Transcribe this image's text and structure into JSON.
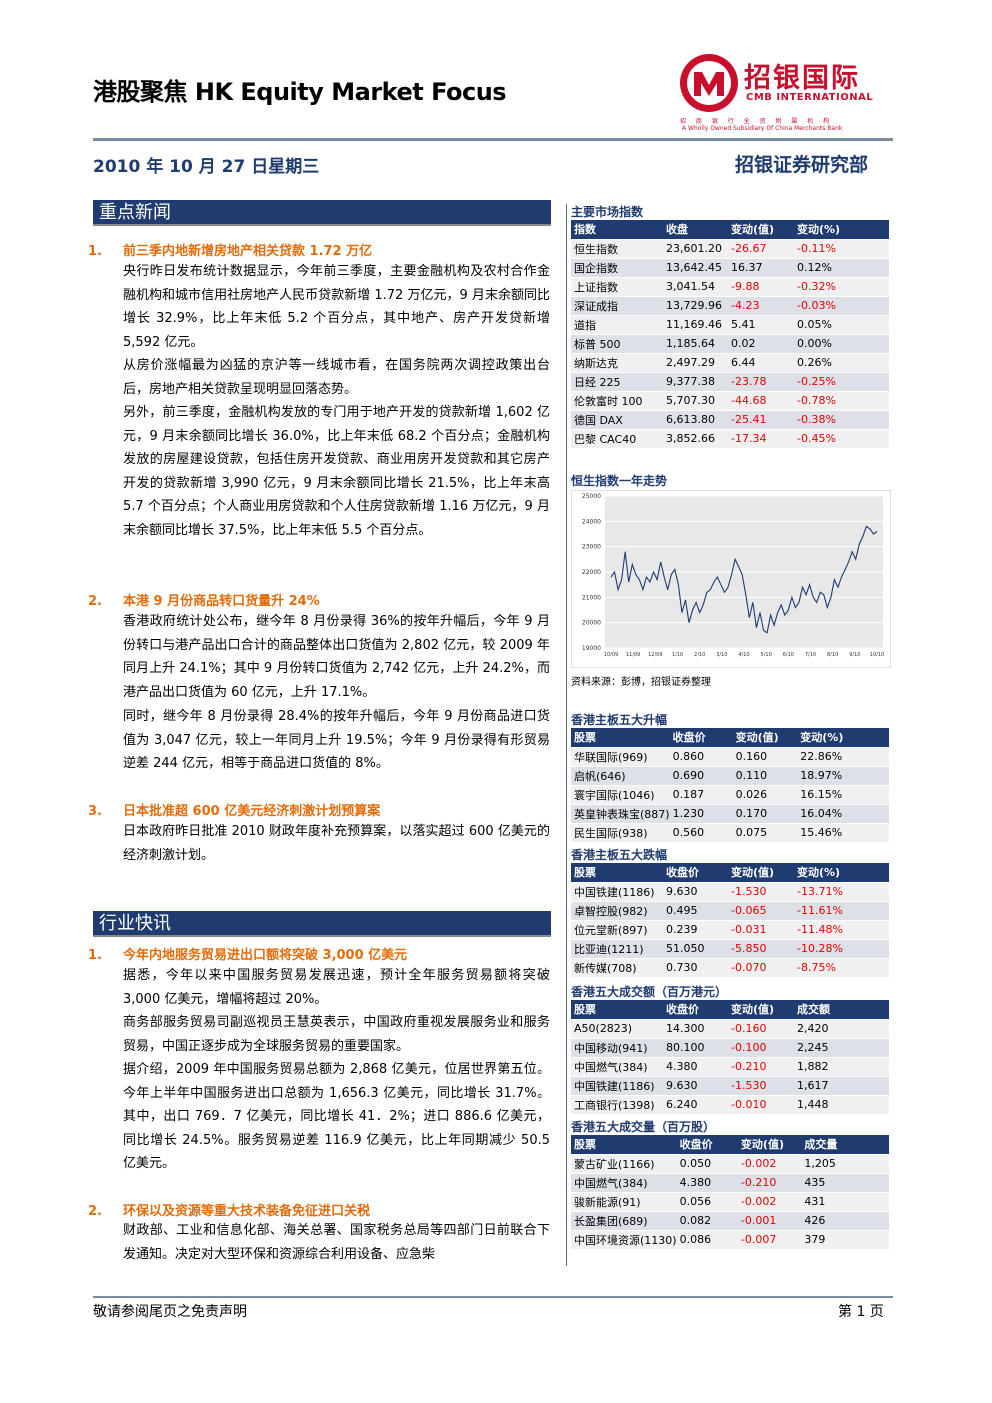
{
  "header": {
    "title": "港股聚焦 HK Equity Market Focus",
    "logo_name": "招银国际",
    "logo_sub": "CMB INTERNATIONAL",
    "logo_line1": "招 商 银 行 全 资 附 属 机 构",
    "logo_line2": "A Wholly Owned Subsidiary Of China Merchants Bank",
    "date": "2010 年 10 月 27 日星期三",
    "department": "招银证券研究部"
  },
  "sections": {
    "news_title": "重点新闻",
    "industry_title": "行业快讯"
  },
  "news": [
    {
      "num": "1.",
      "title": "前三季内地新增房地产相关贷款 1.72 万亿",
      "paras": [
        "央行昨日发布统计数据显示，今年前三季度，主要金融机构及农村合作金融机构和城市信用社房地产人民币贷款新增 1.72 万亿元，9 月末余额同比增长 32.9%，比上年末低 5.2 个百分点，其中地产、房产开发贷新增 5,592 亿元。",
        "从房价涨幅最为凶猛的京沪等一线城市看，在国务院两次调控政策出台后，房地产相关贷款呈现明显回落态势。",
        "另外，前三季度，金融机构发放的专门用于地产开发的贷款新增 1,602 亿元，9 月末余额同比增长 36.0%，比上年末低 68.2 个百分点；金融机构发放的房屋建设贷款，包括住房开发贷款、商业用房开发贷款和其它房产开发的贷款新增 3,990 亿元，9 月末余额同比增长 21.5%，比上年末高 5.7 个百分点；个人商业用房贷款和个人住房贷款新增 1.16 万亿元，9 月末余额同比增长 37.5%，比上年末低 5.5 个百分点。"
      ]
    },
    {
      "num": "2.",
      "title": "本港 9 月份商品转口货量升 24%",
      "paras": [
        "香港政府统计处公布，继今年 8 月份录得 36%的按年升幅后，今年 9 月份转口与港产品出口合计的商品整体出口货值为 2,802 亿元，较 2009 年同月上升 24.1%；其中 9 月份转口货值为 2,742 亿元，上升 24.2%，而港产品出口货值为 60 亿元，上升 17.1%。",
        "同时，继今年 8 月份录得 28.4%的按年升幅后，今年 9 月份商品进口货值为 3,047 亿元，较上一年同月上升 19.5%；今年 9 月份录得有形贸易逆差 244 亿元，相等于商品进口货值的 8%。"
      ]
    },
    {
      "num": "3.",
      "title": "日本批准超 600 亿美元经济刺激计划预算案",
      "paras": [
        "日本政府昨日批准 2010 财政年度补充预算案，以落实超过 600 亿美元的经济刺激计划。"
      ]
    }
  ],
  "industry": [
    {
      "num": "1.",
      "title": "今年内地服务贸易进出口额将突破 3,000 亿美元",
      "paras": [
        "据悉，今年以来中国服务贸易发展迅速，预计全年服务贸易额将突破 3,000 亿美元，增幅将超过 20%。",
        "商务部服务贸易司副巡视员王慧英表示，中国政府重视发展服务业和服务贸易，中国正逐步成为全球服务贸易的重要国家。",
        "据介绍，2009 年中国服务贸易总额为 2,868 亿美元，位居世界第五位。今年上半年中国服务进出口总额为 1,656.3 亿美元，同比增长 31.7%。其中，出口 769．7 亿美元，同比增长 41．2%；进口 886.6 亿美元，同比增长 24.5%。服务贸易逆差 116.9 亿美元，比上年同期减少 50.5 亿美元。"
      ]
    },
    {
      "num": "2.",
      "title": "环保以及资源等重大技术装备免征进口关税",
      "paras": [
        "财政部、工业和信息化部、海关总署、国家税务总局等四部门日前联合下发通知。决定对大型环保和资源综合利用设备、应急柴"
      ]
    }
  ],
  "indices": {
    "title": "主要市场指数",
    "headers": [
      "指数",
      "收盘",
      "变动(值)",
      "变动(%)"
    ],
    "rows": [
      [
        "恒生指数",
        "23,601.20",
        "-26.67",
        "-0.11%"
      ],
      [
        "国企指数",
        "13,642.45",
        "16.37",
        "0.12%"
      ],
      [
        "上证指数",
        "3,041.54",
        "-9.88",
        "-0.32%"
      ],
      [
        "深证成指",
        "13,729.96",
        "-4.23",
        "-0.03%"
      ],
      [
        "道指",
        "11,169.46",
        "5.41",
        "0.05%"
      ],
      [
        "标普 500",
        "1,185.64",
        "0.02",
        "0.00%"
      ],
      [
        "纳斯达克",
        "2,497.29",
        "6.44",
        "0.26%"
      ],
      [
        "日经 225",
        "9,377.38",
        "-23.78",
        "-0.25%"
      ],
      [
        "伦敦富时 100",
        "5,707.30",
        "-44.68",
        "-0.78%"
      ],
      [
        "德国 DAX",
        "6,613.80",
        "-25.41",
        "-0.38%"
      ],
      [
        "巴黎 CAC40",
        "3,852.66",
        "-17.34",
        "-0.45%"
      ]
    ]
  },
  "chart_title": "恒生指数一年走势",
  "chart_data": {
    "type": "line",
    "ylim": [
      19000,
      25000
    ],
    "yticks": [
      "25000",
      "24000",
      "23000",
      "22000",
      "21000",
      "20000",
      "19000"
    ],
    "x_ticks": [
      "10/09",
      "11/09",
      "12/09",
      "1/10",
      "2/10",
      "3/10",
      "4/10",
      "5/10",
      "6/10",
      "7/10",
      "8/10",
      "9/10",
      "10/10"
    ],
    "series": [
      {
        "values": [
          21800,
          22000,
          21300,
          21700,
          22800,
          21600,
          22300,
          21900,
          21700,
          21300,
          21800,
          21600,
          22000,
          21700,
          22400,
          21800,
          21300,
          21900,
          22100,
          21500,
          20400,
          20900,
          20000,
          20500,
          20800,
          20400,
          20700,
          21200,
          21300,
          21600,
          21800,
          21500,
          21200,
          21400,
          21900,
          22500,
          22200,
          21900,
          21100,
          20200,
          20800,
          19800,
          20400,
          19700,
          19600,
          20300,
          19900,
          20400,
          20700,
          20300,
          20500,
          21000,
          20600,
          20800,
          21400,
          21100,
          21500,
          21000,
          20800,
          21200,
          21100,
          20600,
          21000,
          21700,
          21400,
          21800,
          22100,
          22400,
          22800,
          22500,
          23100,
          23400,
          23800,
          23700,
          23500,
          23600
        ]
      }
    ]
  },
  "source_note": "资料来源：彭博，招银证券整理",
  "top_gainers": {
    "title": "香港主板五大升幅",
    "headers": [
      "股票",
      "收盘价",
      "变动(值)",
      "变动(%)"
    ],
    "rows": [
      [
        "华联国际(969)",
        "0.860",
        "0.160",
        "22.86%"
      ],
      [
        "启帆(646)",
        "0.690",
        "0.110",
        "18.97%"
      ],
      [
        "寰宇国际(1046)",
        "0.187",
        "0.026",
        "16.15%"
      ],
      [
        "英皇钟表珠宝(887)",
        "1.230",
        "0.170",
        "16.04%"
      ],
      [
        "民生国际(938)",
        "0.560",
        "0.075",
        "15.46%"
      ]
    ]
  },
  "top_losers": {
    "title": "香港主板五大跌幅",
    "headers": [
      "股票",
      "收盘价",
      "变动(值)",
      "变动(%)"
    ],
    "rows": [
      [
        "中国铁建(1186)",
        "9.630",
        "-1.530",
        "-13.71%"
      ],
      [
        "卓智控股(982)",
        "0.495",
        "-0.065",
        "-11.61%"
      ],
      [
        "位元堂新(897)",
        "0.239",
        "-0.031",
        "-11.48%"
      ],
      [
        "比亚迪(1211)",
        "51.050",
        "-5.850",
        "-10.28%"
      ],
      [
        "新传媒(708)",
        "0.730",
        "-0.070",
        "-8.75%"
      ]
    ]
  },
  "top_turnover": {
    "title": "香港五大成交额（百万港元）",
    "headers": [
      "股票",
      "收盘价",
      "变动(值)",
      "成交额"
    ],
    "rows": [
      [
        "A50(2823)",
        "14.300",
        "-0.160",
        "2,420"
      ],
      [
        "中国移动(941)",
        "80.100",
        "-0.100",
        "2,245"
      ],
      [
        "中国燃气(384)",
        "4.380",
        "-0.210",
        "1,882"
      ],
      [
        "中国铁建(1186)",
        "9.630",
        "-1.530",
        "1,617"
      ],
      [
        "工商银行(1398)",
        "6.240",
        "-0.010",
        "1,448"
      ]
    ]
  },
  "top_volume": {
    "title": "香港五大成交量（百万股）",
    "headers": [
      "股票",
      "收盘价",
      "变动(值)",
      "成交量"
    ],
    "rows": [
      [
        "蒙古矿业(1166)",
        "0.050",
        "-0.002",
        "1,205"
      ],
      [
        "中国燃气(384)",
        "4.380",
        "-0.210",
        "435"
      ],
      [
        "骏新能源(91)",
        "0.056",
        "-0.002",
        "431"
      ],
      [
        "长盈集团(689)",
        "0.082",
        "-0.001",
        "426"
      ],
      [
        "中国环境资源(1130)",
        "0.086",
        "-0.007",
        "379"
      ]
    ]
  },
  "footer": {
    "disclaimer": "敬请参阅尾页之免责声明",
    "page": "第 1 页"
  },
  "colors": {
    "navy": "#1f3b70",
    "orange": "#e36c0a",
    "red": "#c8102e",
    "negative": "#e00000"
  }
}
